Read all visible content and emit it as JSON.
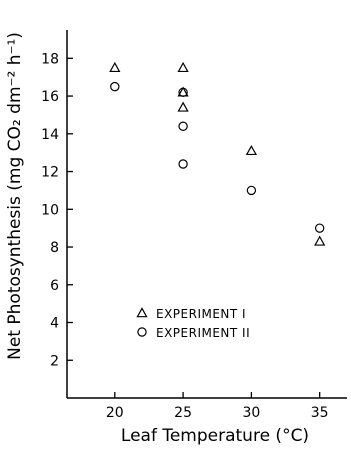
{
  "chart_data": {
    "type": "scatter",
    "xlabel": "Leaf  Temperature (°C)",
    "ylabel": "Net  Photosynthesis (mg CO₂ dm⁻² h⁻¹)",
    "xlim": [
      16.5,
      37
    ],
    "ylim": [
      0,
      19.5
    ],
    "xticks": [
      20,
      25,
      30,
      35
    ],
    "yticks": [
      2,
      4,
      6,
      8,
      10,
      12,
      14,
      16,
      18
    ],
    "grid": false,
    "legend_position": "lower-left",
    "series": [
      {
        "name": "EXPERIMENT I",
        "marker": "triangle",
        "points": [
          {
            "x": 20,
            "y": 17.5
          },
          {
            "x": 25,
            "y": 17.5
          },
          {
            "x": 25,
            "y": 16.2
          },
          {
            "x": 25,
            "y": 15.4
          },
          {
            "x": 30,
            "y": 13.1
          },
          {
            "x": 35,
            "y": 8.3
          }
        ]
      },
      {
        "name": "EXPERIMENT II",
        "marker": "circle",
        "points": [
          {
            "x": 20,
            "y": 16.5
          },
          {
            "x": 25,
            "y": 16.2
          },
          {
            "x": 25,
            "y": 14.4
          },
          {
            "x": 25,
            "y": 12.4
          },
          {
            "x": 30,
            "y": 11.0
          },
          {
            "x": 35,
            "y": 9.0
          }
        ]
      }
    ]
  }
}
